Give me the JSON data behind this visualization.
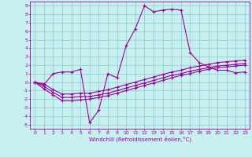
{
  "xlabel": "Windchill (Refroidissement éolien,°C)",
  "bg_color": "#c8f0f0",
  "line_color": "#990099",
  "grid_color": "#88cccc",
  "xlim": [
    -0.5,
    23.5
  ],
  "ylim": [
    -5.5,
    9.5
  ],
  "xticks": [
    0,
    1,
    2,
    3,
    4,
    5,
    6,
    7,
    8,
    9,
    10,
    11,
    12,
    13,
    14,
    15,
    16,
    17,
    18,
    19,
    20,
    21,
    22,
    23
  ],
  "yticks": [
    -5,
    -4,
    -3,
    -2,
    -1,
    0,
    1,
    2,
    3,
    4,
    5,
    6,
    7,
    8,
    9
  ],
  "series1_x": [
    0,
    1,
    2,
    3,
    4,
    5,
    6,
    7,
    8,
    9,
    10,
    11,
    12,
    13,
    14,
    15,
    16,
    17,
    18,
    19,
    20,
    21,
    22,
    23
  ],
  "series1_y": [
    0,
    -0.3,
    1.0,
    1.2,
    1.2,
    1.5,
    -4.8,
    -3.3,
    1.0,
    0.5,
    4.3,
    6.3,
    9.0,
    8.3,
    8.5,
    8.6,
    8.5,
    3.5,
    2.3,
    1.8,
    1.4,
    1.4,
    1.1,
    1.2
  ],
  "series2_x": [
    0,
    1,
    2,
    3,
    4,
    5,
    6,
    7,
    8,
    9,
    10,
    11,
    12,
    13,
    14,
    15,
    16,
    17,
    18,
    19,
    20,
    21,
    22,
    23
  ],
  "series2_y": [
    0.0,
    -0.8,
    -1.5,
    -2.2,
    -2.2,
    -2.1,
    -2.0,
    -1.8,
    -1.6,
    -1.3,
    -1.0,
    -0.7,
    -0.4,
    -0.1,
    0.2,
    0.5,
    0.8,
    1.0,
    1.3,
    1.5,
    1.7,
    1.8,
    1.9,
    2.0
  ],
  "series3_x": [
    0,
    1,
    2,
    3,
    4,
    5,
    6,
    7,
    8,
    9,
    10,
    11,
    12,
    13,
    14,
    15,
    16,
    17,
    18,
    19,
    20,
    21,
    22,
    23
  ],
  "series3_y": [
    0.0,
    -0.5,
    -1.2,
    -1.8,
    -1.8,
    -1.7,
    -1.7,
    -1.5,
    -1.3,
    -1.0,
    -0.7,
    -0.4,
    -0.1,
    0.2,
    0.5,
    0.8,
    1.0,
    1.3,
    1.5,
    1.7,
    1.9,
    2.0,
    2.1,
    2.2
  ],
  "series4_x": [
    0,
    1,
    2,
    3,
    4,
    5,
    6,
    7,
    8,
    9,
    10,
    11,
    12,
    13,
    14,
    15,
    16,
    17,
    18,
    19,
    20,
    21,
    22,
    23
  ],
  "series4_y": [
    0.0,
    -0.2,
    -0.9,
    -1.4,
    -1.4,
    -1.3,
    -1.3,
    -1.1,
    -0.9,
    -0.6,
    -0.3,
    0.0,
    0.3,
    0.6,
    0.9,
    1.2,
    1.4,
    1.7,
    1.9,
    2.1,
    2.3,
    2.4,
    2.5,
    2.6
  ]
}
